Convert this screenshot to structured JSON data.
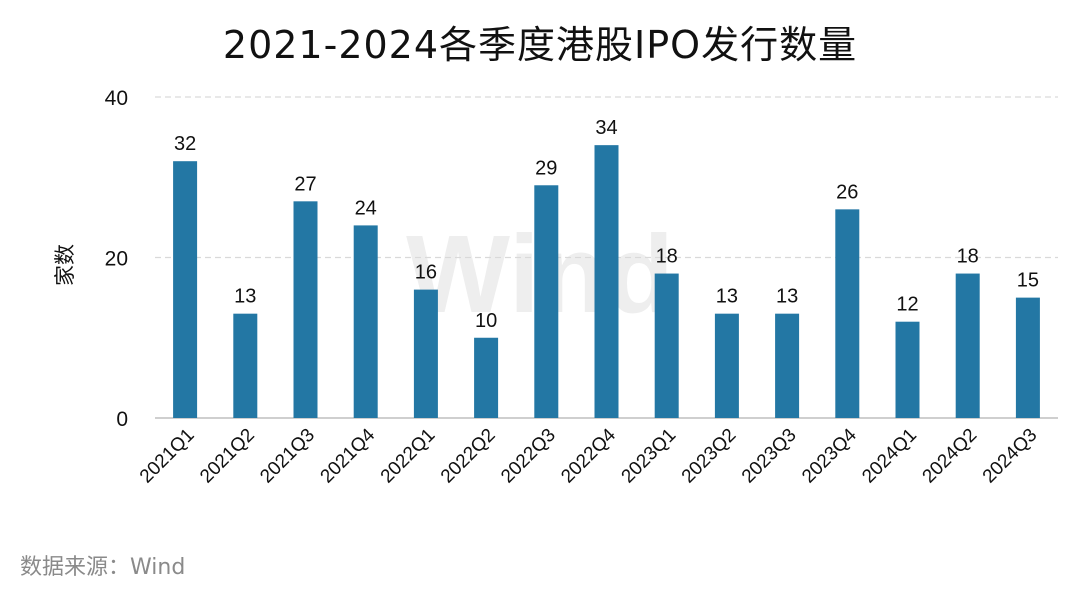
{
  "title": "2021-2024各季度港股IPO发行数量",
  "source": "数据来源：Wind",
  "watermark": "Wind",
  "colors": {
    "bar": "#2377a4",
    "grid": "#d9d9d9",
    "axis": "#bfbfbf",
    "text": "#111111",
    "watermark": "#eeeeee"
  },
  "chart_data": {
    "type": "bar",
    "title": "2021-2024各季度港股IPO发行数量",
    "ylabel": "家数",
    "xlabel": "",
    "ylim": [
      0,
      40
    ],
    "yticks": [
      0,
      20,
      40
    ],
    "grid": true,
    "categories": [
      "2021Q1",
      "2021Q2",
      "2021Q3",
      "2021Q4",
      "2022Q1",
      "2022Q2",
      "2022Q3",
      "2022Q4",
      "2023Q1",
      "2023Q2",
      "2023Q3",
      "2023Q4",
      "2024Q1",
      "2024Q2",
      "2024Q3"
    ],
    "values": [
      32,
      13,
      27,
      24,
      16,
      10,
      29,
      34,
      18,
      13,
      13,
      26,
      12,
      18,
      15
    ]
  }
}
